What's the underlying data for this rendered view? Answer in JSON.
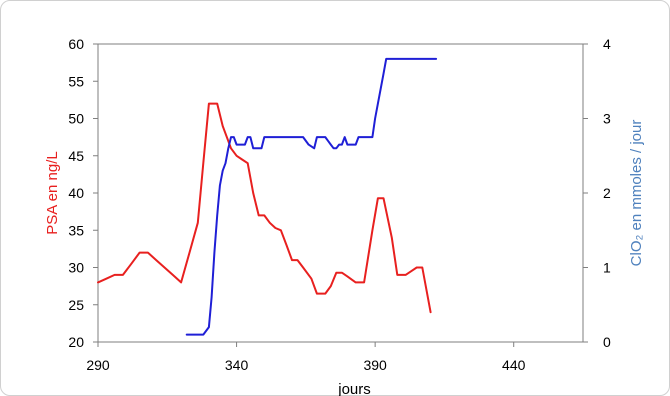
{
  "chart_data": {
    "type": "line",
    "title": "",
    "xlabel": "jours",
    "ylabel": "PSA en ng/L",
    "y2label": "ClO₂ en mmoles / jour",
    "xlim": [
      290,
      465
    ],
    "ylim": [
      20,
      60
    ],
    "y2lim": [
      0,
      4
    ],
    "xticks": [
      "290",
      "340",
      "390",
      "440"
    ],
    "yticks": [
      "20",
      "25",
      "30",
      "35",
      "40",
      "45",
      "50",
      "55",
      "60"
    ],
    "y2ticks": [
      "0",
      "1",
      "2",
      "3",
      "4"
    ],
    "legend": "none",
    "grid": false,
    "colors": {
      "psa": "#e8201f",
      "clo2": "#1f1fd6",
      "ylabel": "#e8201f",
      "y2label": "#4f81bd"
    },
    "series": [
      {
        "axis": "left",
        "color": "#e8201f",
        "x": [
          290,
          293,
          296,
          299,
          302,
          305,
          308,
          311,
          314,
          317,
          320,
          323,
          326,
          328,
          330,
          333,
          335,
          338,
          340,
          342,
          344,
          346,
          348,
          350,
          352,
          354,
          356,
          358,
          360,
          362,
          364,
          367,
          369,
          372,
          374,
          376,
          378,
          380,
          383,
          386,
          389,
          391,
          393,
          396,
          398,
          401,
          403,
          405,
          407,
          410
        ],
        "y": [
          28,
          28.5,
          29,
          29,
          30.5,
          32,
          32,
          31,
          30,
          29,
          28,
          32,
          36,
          44,
          52,
          52,
          49,
          46,
          45,
          44.5,
          44,
          40,
          37,
          37,
          36,
          35.3,
          35,
          33,
          31,
          31,
          30,
          28.5,
          26.5,
          26.5,
          27.5,
          29.3,
          29.3,
          28.8,
          28,
          28,
          35,
          39.3,
          39.3,
          34,
          29,
          29,
          29.5,
          30,
          30,
          24
        ]
      },
      {
        "axis": "right",
        "color": "#1f1fd6",
        "x": [
          322,
          324,
          326,
          328,
          330,
          331,
          332,
          333,
          334,
          335,
          336,
          337,
          338,
          339,
          340,
          341,
          342,
          343,
          344,
          345,
          346,
          347,
          348,
          349,
          350,
          351,
          352,
          354,
          356,
          358,
          360,
          362,
          364,
          366,
          368,
          369,
          370,
          371,
          372,
          373,
          374,
          375,
          376,
          377,
          378,
          379,
          380,
          381,
          382,
          383,
          384,
          385,
          386,
          387,
          388,
          389,
          390,
          391,
          392,
          393,
          394,
          395,
          396,
          398,
          400,
          402,
          404,
          406,
          408,
          410,
          412
        ],
        "y": [
          0.1,
          0.1,
          0.1,
          0.1,
          0.2,
          0.6,
          1.2,
          1.7,
          2.1,
          2.3,
          2.4,
          2.6,
          2.75,
          2.75,
          2.65,
          2.65,
          2.65,
          2.65,
          2.75,
          2.75,
          2.6,
          2.6,
          2.6,
          2.6,
          2.75,
          2.75,
          2.75,
          2.75,
          2.75,
          2.75,
          2.75,
          2.75,
          2.75,
          2.65,
          2.6,
          2.75,
          2.75,
          2.75,
          2.75,
          2.7,
          2.65,
          2.6,
          2.6,
          2.65,
          2.65,
          2.75,
          2.65,
          2.65,
          2.65,
          2.65,
          2.75,
          2.75,
          2.75,
          2.75,
          2.75,
          2.75,
          3.0,
          3.2,
          3.4,
          3.6,
          3.8,
          3.8,
          3.8,
          3.8,
          3.8,
          3.8,
          3.8,
          3.8,
          3.8,
          3.8,
          3.8
        ]
      }
    ]
  }
}
